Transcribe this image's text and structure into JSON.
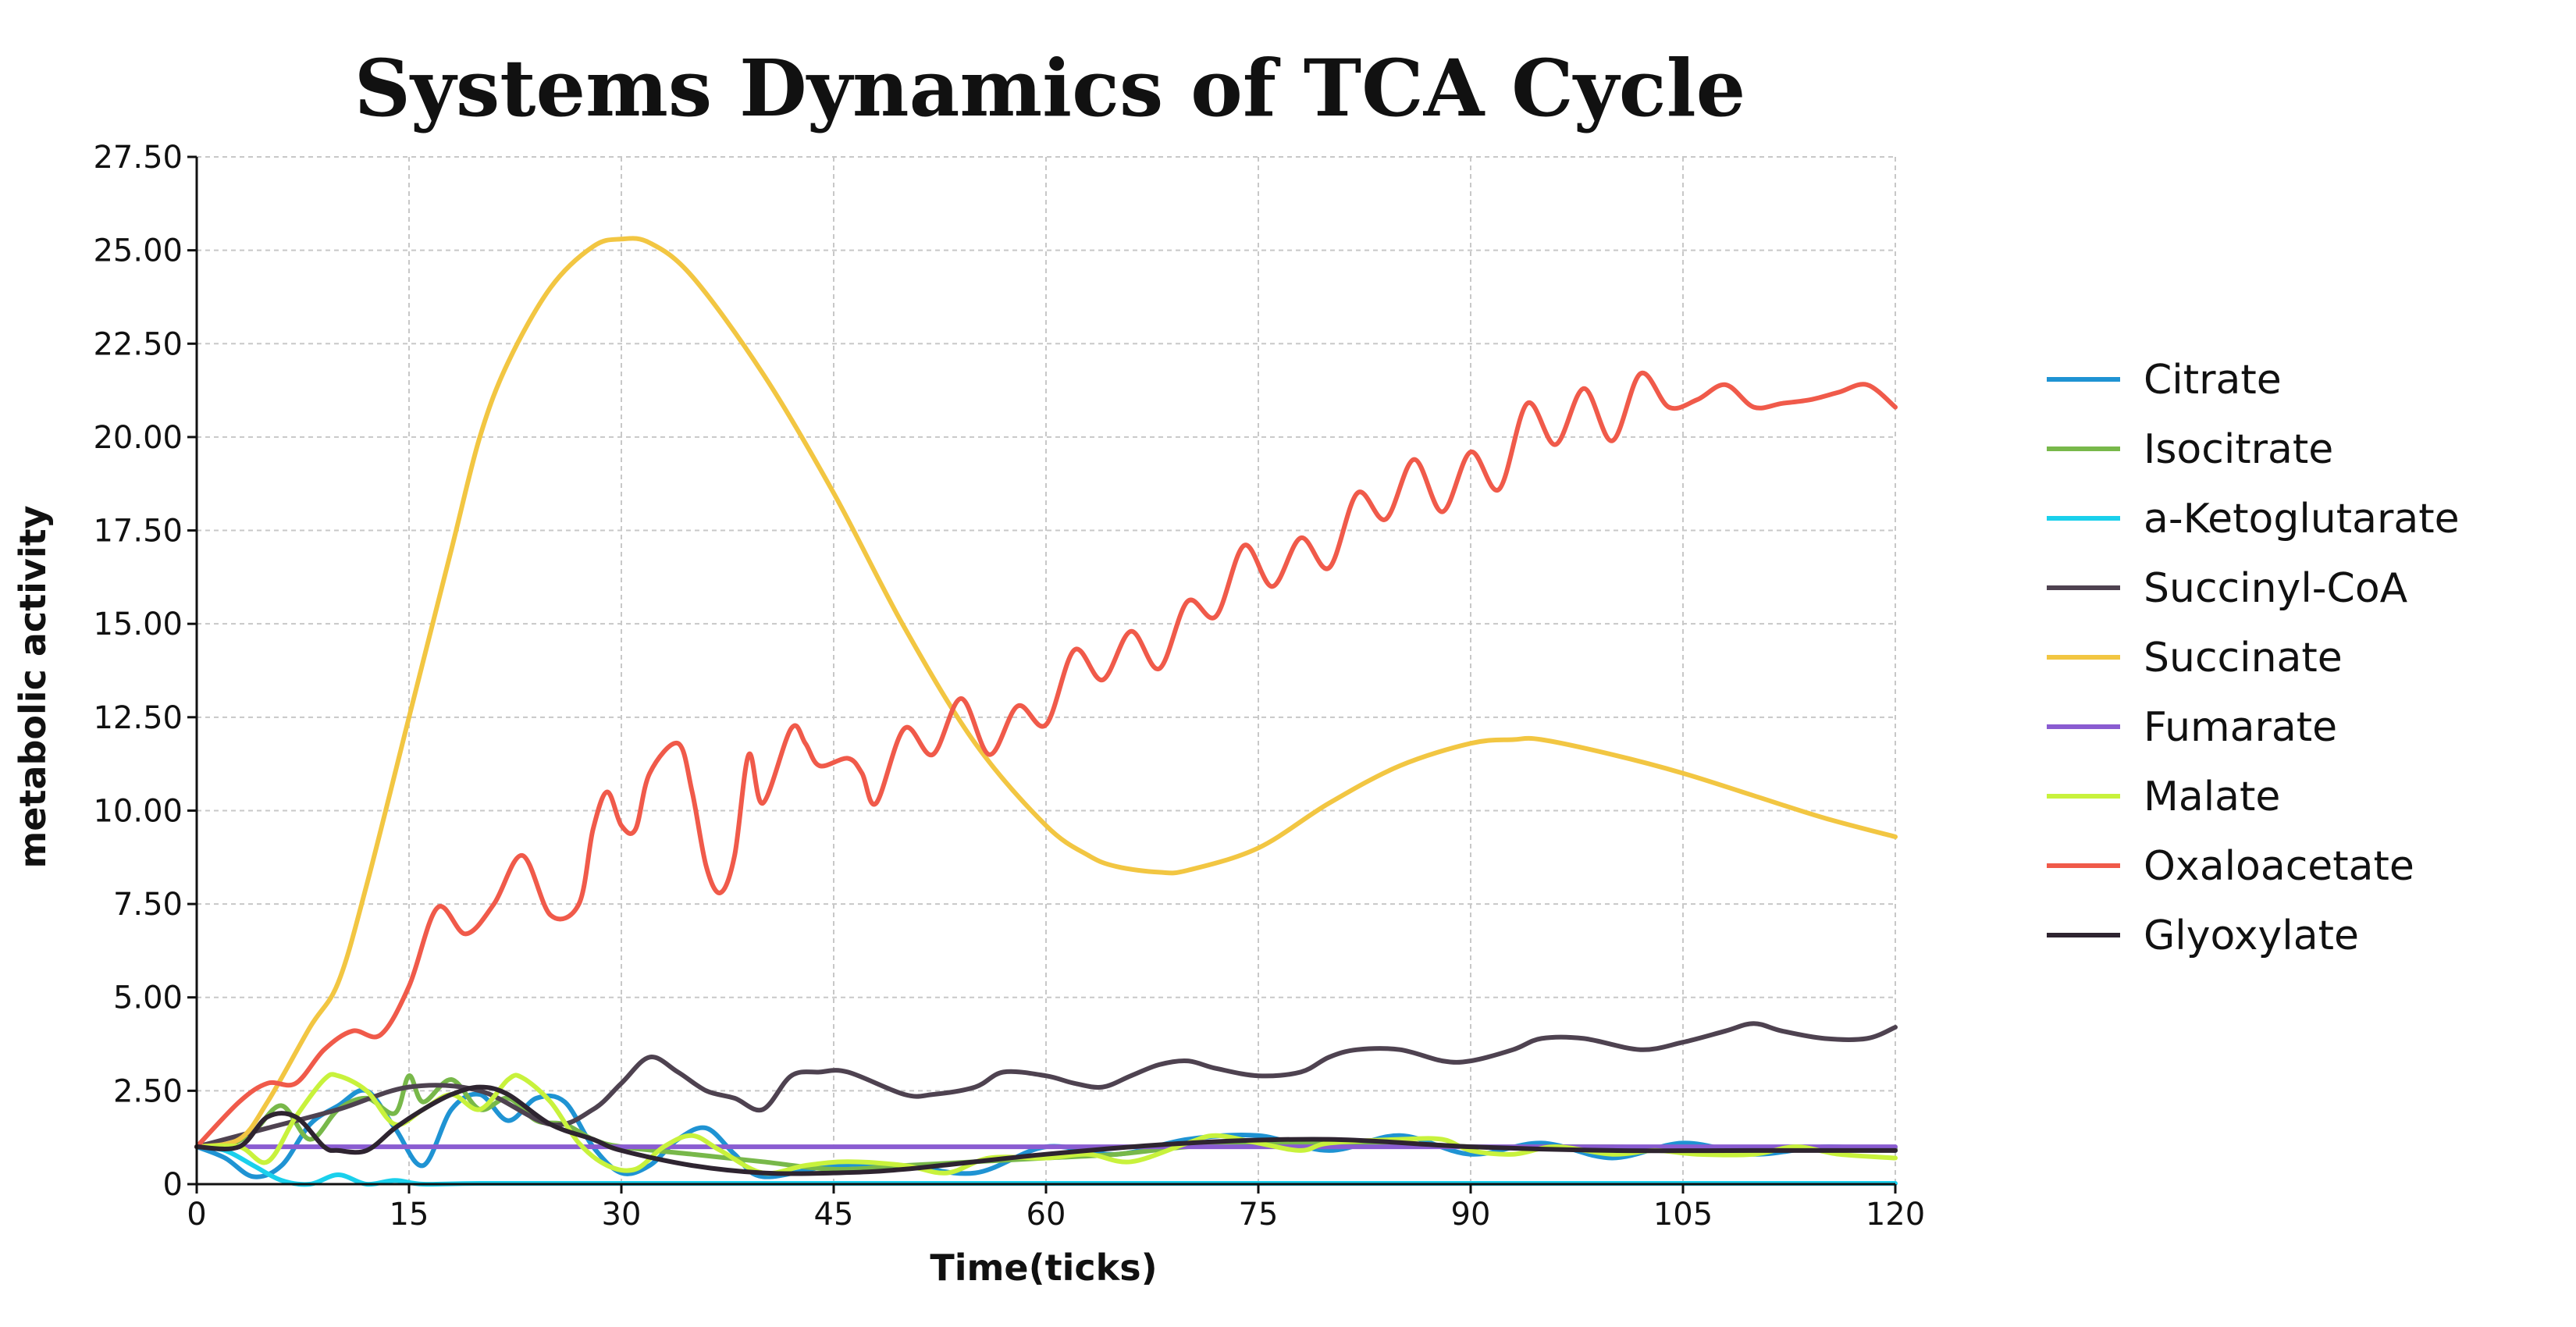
{
  "chart_data": {
    "type": "line",
    "title": "Systems Dynamics of TCA Cycle",
    "xlabel": "Time(ticks)",
    "ylabel": "metabolic activity",
    "xlim": [
      0,
      120
    ],
    "ylim": [
      0,
      27.5
    ],
    "x_ticks": [
      0,
      15,
      30,
      45,
      60,
      75,
      90,
      105,
      120
    ],
    "x_tick_labels": [
      "0",
      "15",
      "30",
      "45",
      "60",
      "75",
      "90",
      "105",
      "120"
    ],
    "y_ticks": [
      0,
      2.5,
      5,
      7.5,
      10,
      12.5,
      15,
      17.5,
      20,
      22.5,
      25,
      27.5
    ],
    "y_tick_labels": [
      "0",
      "2.50",
      "5.00",
      "7.50",
      "10.00",
      "12.50",
      "15.00",
      "17.50",
      "20.00",
      "22.50",
      "25.00",
      "27.50"
    ],
    "grid": true,
    "legend_position": "right",
    "series": [
      {
        "name": "Citrate",
        "color": "#1f93d3",
        "x": [
          0,
          2,
          4,
          6,
          8,
          10,
          12,
          14,
          16,
          18,
          20,
          22,
          24,
          26,
          28,
          30,
          32,
          34,
          36,
          38,
          40,
          45,
          50,
          55,
          60,
          65,
          70,
          75,
          80,
          85,
          90,
          95,
          100,
          105,
          110,
          115,
          120
        ],
        "y": [
          1.0,
          0.7,
          0.2,
          0.5,
          1.6,
          2.1,
          2.5,
          1.5,
          0.5,
          2.0,
          2.4,
          1.7,
          2.3,
          2.2,
          1.0,
          0.3,
          0.5,
          1.2,
          1.5,
          0.8,
          0.2,
          0.5,
          0.5,
          0.3,
          1.0,
          0.8,
          1.2,
          1.3,
          0.9,
          1.3,
          0.8,
          1.1,
          0.7,
          1.1,
          0.8,
          1.0,
          0.9
        ]
      },
      {
        "name": "Isocitrate",
        "color": "#78b84a",
        "x": [
          0,
          2,
          4,
          6,
          8,
          10,
          12,
          14,
          15,
          16,
          18,
          20,
          22,
          24,
          26,
          28,
          30,
          35,
          40,
          45,
          50,
          55,
          60,
          65,
          70,
          75,
          80,
          85,
          90,
          95,
          100,
          105,
          110,
          115,
          120
        ],
        "y": [
          1.0,
          1.0,
          1.4,
          2.1,
          1.2,
          2.0,
          2.3,
          1.9,
          2.9,
          2.2,
          2.8,
          2.0,
          2.3,
          1.7,
          1.6,
          1.2,
          1.0,
          0.8,
          0.6,
          0.4,
          0.5,
          0.6,
          0.7,
          0.8,
          1.0,
          1.1,
          1.1,
          1.1,
          1.0,
          1.0,
          1.0,
          0.95,
          0.95,
          0.95,
          0.95
        ]
      },
      {
        "name": "a-Ketoglutarate",
        "color": "#1ad0ec",
        "x": [
          0,
          2,
          4,
          6,
          8,
          10,
          12,
          14,
          16,
          20,
          30,
          40,
          60,
          80,
          100,
          120
        ],
        "y": [
          1.0,
          0.9,
          0.5,
          0.1,
          0.0,
          0.25,
          0.0,
          0.1,
          0.0,
          0.02,
          0.02,
          0.02,
          0.02,
          0.02,
          0.02,
          0.02
        ]
      },
      {
        "name": "Succinyl-CoA",
        "color": "#4e4250",
        "x": [
          0,
          5,
          10,
          15,
          20,
          25,
          28,
          30,
          32,
          34,
          36,
          38,
          40,
          42,
          44,
          46,
          50,
          52,
          55,
          57,
          60,
          62,
          64,
          66,
          68,
          70,
          72,
          75,
          78,
          80,
          82,
          85,
          88,
          90,
          93,
          95,
          98,
          102,
          105,
          108,
          110,
          112,
          115,
          118,
          120
        ],
        "y": [
          1.0,
          1.5,
          2.0,
          2.6,
          2.5,
          1.6,
          2.0,
          2.7,
          3.4,
          3.0,
          2.5,
          2.3,
          2.0,
          2.9,
          3.0,
          3.0,
          2.4,
          2.4,
          2.6,
          3.0,
          2.9,
          2.7,
          2.6,
          2.9,
          3.2,
          3.3,
          3.1,
          2.9,
          3.0,
          3.4,
          3.6,
          3.6,
          3.3,
          3.3,
          3.6,
          3.9,
          3.9,
          3.6,
          3.8,
          4.1,
          4.3,
          4.1,
          3.9,
          3.9,
          4.2
        ]
      },
      {
        "name": "Succinate",
        "color": "#f2c642",
        "x": [
          0,
          3,
          5,
          8,
          10,
          12,
          15,
          18,
          20,
          22,
          25,
          28,
          30,
          32,
          35,
          40,
          45,
          50,
          55,
          60,
          63,
          65,
          68,
          70,
          75,
          80,
          85,
          90,
          93,
          95,
          100,
          105,
          110,
          115,
          120
        ],
        "y": [
          1.0,
          1.2,
          2.2,
          4.2,
          5.4,
          8.0,
          12.5,
          17.0,
          20.0,
          22.0,
          24.0,
          25.1,
          25.3,
          25.2,
          24.3,
          21.7,
          18.5,
          14.9,
          11.8,
          9.6,
          8.8,
          8.5,
          8.35,
          8.4,
          9.0,
          10.2,
          11.2,
          11.8,
          11.9,
          11.9,
          11.5,
          11.0,
          10.4,
          9.8,
          9.3
        ]
      },
      {
        "name": "Fumarate",
        "color": "#8a5cd1",
        "x": [
          0,
          120
        ],
        "y": [
          1.0,
          1.0
        ]
      },
      {
        "name": "Malate",
        "color": "#c8f23c",
        "x": [
          0,
          3,
          5,
          7,
          9,
          10,
          12,
          14,
          16,
          18,
          20,
          22,
          23,
          25,
          27,
          29,
          31,
          33,
          35,
          37,
          40,
          43,
          46,
          50,
          53,
          56,
          60,
          63,
          66,
          70,
          72,
          75,
          78,
          80,
          85,
          88,
          90,
          93,
          96,
          100,
          103,
          106,
          110,
          113,
          116,
          120
        ],
        "y": [
          1.0,
          1.0,
          0.6,
          1.8,
          2.8,
          2.9,
          2.5,
          1.6,
          2.0,
          2.4,
          2.0,
          2.8,
          2.85,
          2.2,
          1.1,
          0.5,
          0.4,
          1.0,
          1.3,
          0.9,
          0.3,
          0.5,
          0.6,
          0.5,
          0.3,
          0.7,
          0.7,
          0.8,
          0.6,
          1.1,
          1.3,
          1.1,
          0.9,
          1.1,
          1.2,
          1.2,
          0.9,
          0.8,
          1.0,
          0.8,
          0.9,
          0.8,
          0.8,
          1.0,
          0.8,
          0.7
        ]
      },
      {
        "name": "Oxaloacetate",
        "color": "#f05a4a",
        "x": [
          0,
          3,
          5,
          7,
          9,
          11,
          13,
          15,
          17,
          19,
          21,
          23,
          25,
          27,
          28,
          29,
          30,
          31,
          32,
          34,
          35,
          36,
          37,
          38,
          39,
          40,
          42,
          43,
          44,
          46,
          47,
          48,
          50,
          52,
          54,
          56,
          58,
          60,
          62,
          64,
          66,
          68,
          70,
          72,
          74,
          76,
          78,
          80,
          82,
          84,
          86,
          88,
          90,
          92,
          94,
          96,
          98,
          100,
          102,
          104,
          106,
          108,
          110,
          112,
          114,
          116,
          118,
          120
        ],
        "y": [
          1.0,
          2.2,
          2.7,
          2.7,
          3.6,
          4.1,
          4.0,
          5.3,
          7.4,
          6.7,
          7.5,
          8.8,
          7.2,
          7.5,
          9.5,
          10.5,
          9.6,
          9.5,
          11.0,
          11.8,
          10.5,
          8.5,
          7.8,
          8.8,
          11.5,
          10.2,
          12.2,
          11.8,
          11.2,
          11.4,
          11.0,
          10.2,
          12.2,
          11.5,
          13.0,
          11.5,
          12.8,
          12.3,
          14.3,
          13.5,
          14.8,
          13.8,
          15.6,
          15.2,
          17.1,
          16.0,
          17.3,
          16.5,
          18.5,
          17.8,
          19.4,
          18.0,
          19.6,
          18.6,
          20.9,
          19.8,
          21.3,
          19.9,
          21.7,
          20.8,
          21.0,
          21.4,
          20.8,
          20.9,
          21.0,
          21.2,
          21.4,
          20.8
        ]
      },
      {
        "name": "Glyoxylate",
        "color": "#2e2430",
        "x": [
          0,
          3,
          5,
          7,
          9,
          10,
          12,
          14,
          16,
          18,
          20,
          22,
          25,
          28,
          30,
          35,
          40,
          45,
          50,
          60,
          70,
          80,
          90,
          100,
          110,
          120
        ],
        "y": [
          1.0,
          1.0,
          1.8,
          1.8,
          1.0,
          0.9,
          0.9,
          1.5,
          2.0,
          2.4,
          2.6,
          2.4,
          1.6,
          1.2,
          0.9,
          0.5,
          0.3,
          0.3,
          0.4,
          0.8,
          1.1,
          1.2,
          1.0,
          0.9,
          0.9,
          0.9
        ]
      }
    ]
  }
}
